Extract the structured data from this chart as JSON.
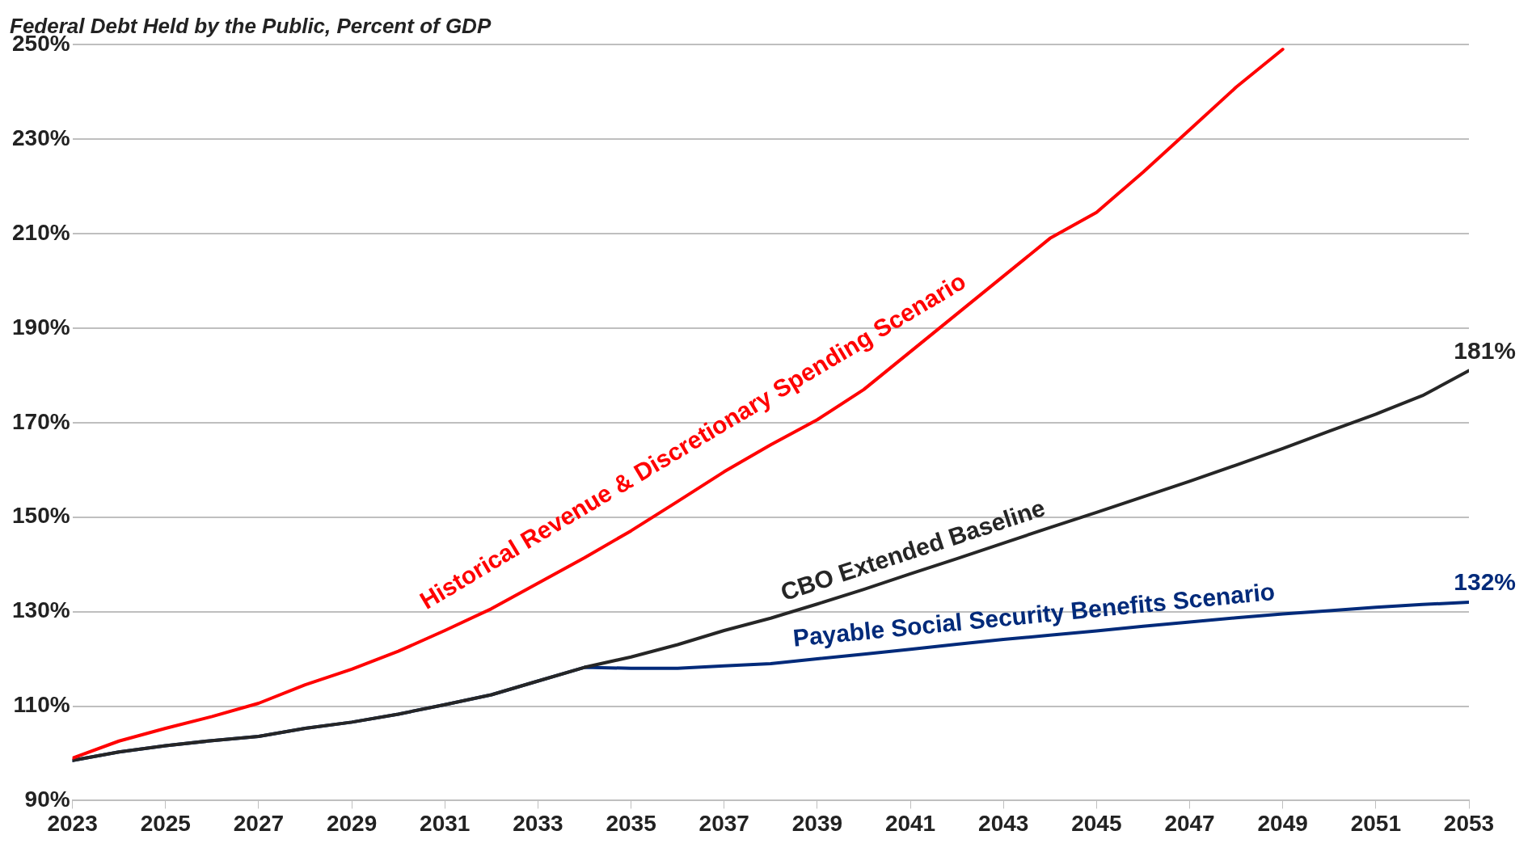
{
  "chart_data": {
    "type": "line",
    "title": "Federal Debt Held by the Public, Percent of GDP",
    "x": [
      2023,
      2024,
      2025,
      2026,
      2027,
      2028,
      2029,
      2030,
      2031,
      2032,
      2033,
      2034,
      2035,
      2036,
      2037,
      2038,
      2039,
      2040,
      2041,
      2042,
      2043,
      2044,
      2045,
      2046,
      2047,
      2048,
      2049,
      2050,
      2051,
      2052,
      2053
    ],
    "series": [
      {
        "name": "Historical Revenue & Discretionary Spending Scenario",
        "color": "#ff0000",
        "values": [
          99,
          102.6,
          105.3,
          107.8,
          110.6,
          114.5,
          117.8,
          121.6,
          126,
          130.6,
          136,
          141.4,
          147.1,
          153.3,
          159.6,
          165.3,
          170.6,
          177,
          185,
          193,
          201,
          209,
          214.5,
          223,
          232,
          241,
          249,
          null,
          null,
          null,
          null
        ]
      },
      {
        "name": "CBO Extended Baseline",
        "color": "#262626",
        "values": [
          98.5,
          100.3,
          101.6,
          102.7,
          103.6,
          105.3,
          106.6,
          108.3,
          110.3,
          112.4,
          115.3,
          118.2,
          120.4,
          123,
          126,
          128.6,
          131.6,
          134.7,
          138,
          141.2,
          144.5,
          147.8,
          151,
          154.3,
          157.6,
          161,
          164.5,
          168.2,
          171.8,
          175.7,
          181
        ],
        "value_labels": [
          null,
          null,
          null,
          null,
          null,
          null,
          null,
          null,
          null,
          null,
          null,
          null,
          null,
          null,
          null,
          null,
          null,
          null,
          null,
          null,
          null,
          null,
          null,
          null,
          null,
          null,
          null,
          null,
          null,
          null,
          "181%"
        ]
      },
      {
        "name": "Payable Social Security Benefits Scenario",
        "color": "#002a7a",
        "values": [
          98.5,
          100.3,
          101.6,
          102.7,
          103.6,
          105.3,
          106.6,
          108.3,
          110.3,
          112.4,
          115.3,
          118.2,
          118,
          118,
          118.5,
          119,
          120,
          121,
          122,
          123.1,
          124.1,
          125,
          125.9,
          126.9,
          127.8,
          128.7,
          129.5,
          130.2,
          130.9,
          131.5,
          132
        ],
        "value_labels": [
          null,
          null,
          null,
          null,
          null,
          null,
          null,
          null,
          null,
          null,
          null,
          null,
          null,
          null,
          null,
          null,
          null,
          null,
          null,
          null,
          null,
          null,
          null,
          null,
          null,
          null,
          null,
          null,
          null,
          null,
          "132%"
        ]
      }
    ],
    "xlim": [
      2023,
      2053
    ],
    "xticks": [
      2023,
      2025,
      2027,
      2029,
      2031,
      2033,
      2035,
      2037,
      2039,
      2041,
      2043,
      2045,
      2047,
      2049,
      2051,
      2053
    ],
    "ylim": [
      90,
      250
    ],
    "yticks": [
      {
        "value": 90,
        "label": "90%"
      },
      {
        "value": 110,
        "label": "110%"
      },
      {
        "value": 130,
        "label": "130%"
      },
      {
        "value": 150,
        "label": "150%"
      },
      {
        "value": 170,
        "label": "170%"
      },
      {
        "value": 190,
        "label": "190%"
      },
      {
        "value": 210,
        "label": "210%"
      },
      {
        "value": 230,
        "label": "230%"
      },
      {
        "value": 250,
        "label": "250%"
      }
    ],
    "grid": "y",
    "legend": false,
    "marker": "none",
    "line_style": "solid"
  }
}
